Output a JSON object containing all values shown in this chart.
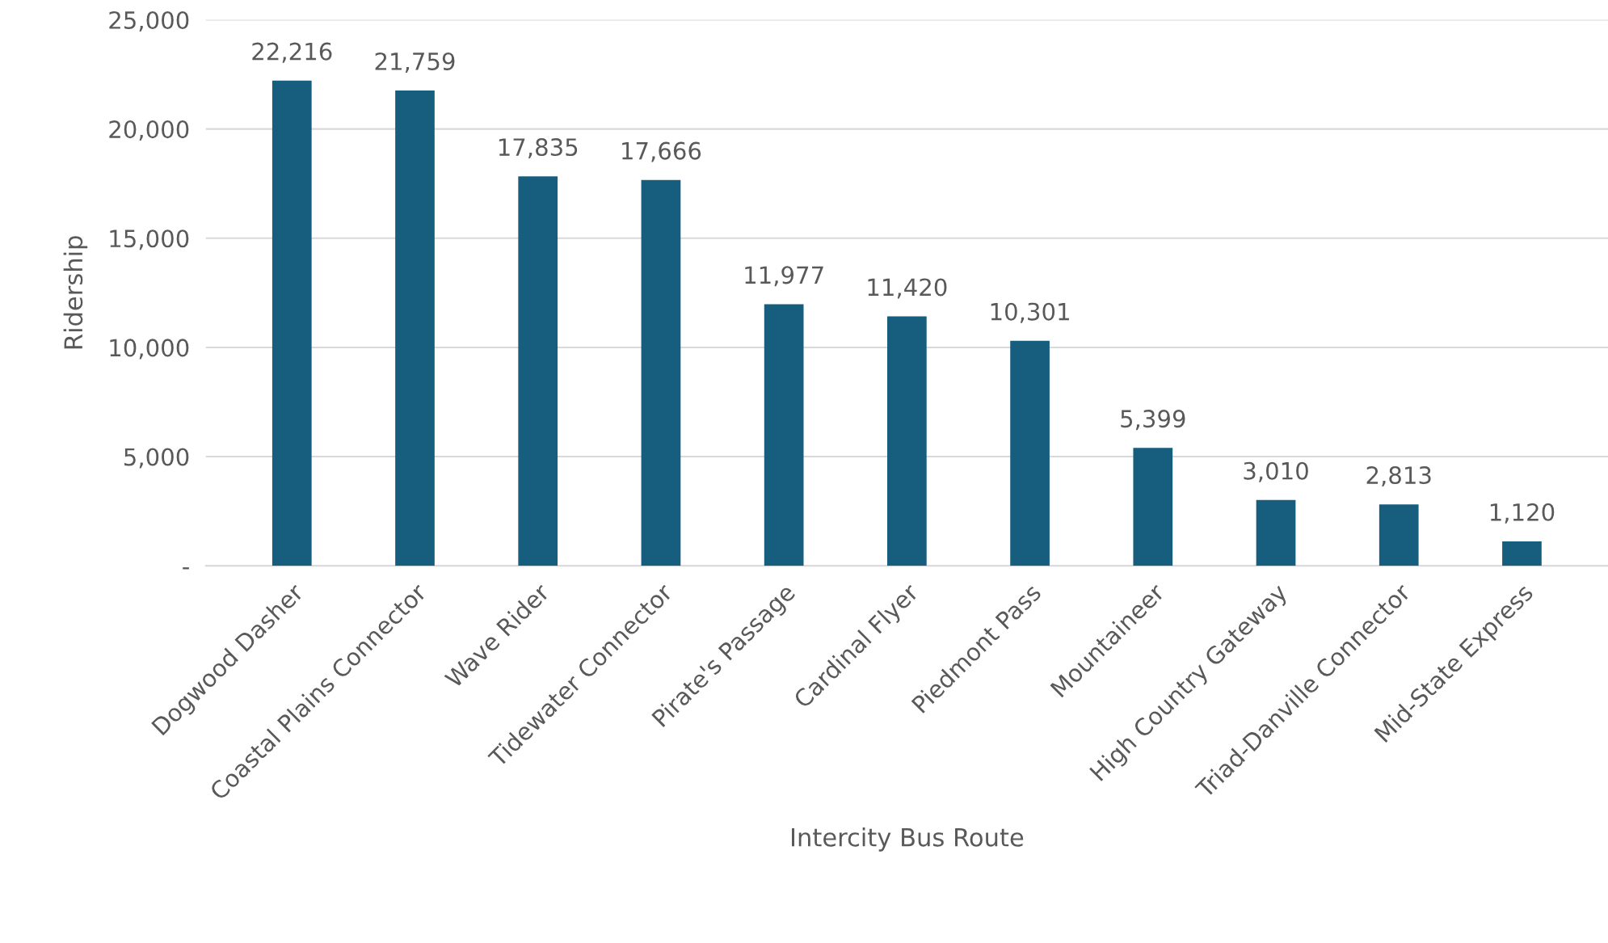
{
  "chart_data": {
    "type": "bar",
    "xlabel": "Intercity Bus Route",
    "ylabel": "Ridership",
    "categories": [
      "Dogwood Dasher",
      "Coastal Plains Connector",
      "Wave Rider",
      "Tidewater Connector",
      "Pirate's Passage",
      "Cardinal Flyer",
      "Piedmont Pass",
      "Mountaineer",
      "High Country Gateway",
      "Triad-Danville Connector",
      "Mid-State Express"
    ],
    "values": [
      22216,
      21759,
      17835,
      17666,
      11977,
      11420,
      10301,
      5399,
      3010,
      2813,
      1120
    ],
    "value_labels": [
      "22,216",
      "21,759",
      "17,835",
      "17,666",
      "11,977",
      "11,420",
      "10,301",
      "5,399",
      "3,010",
      "2,813",
      "1,120"
    ],
    "color": "#175e7e",
    "ylim": [
      0,
      25000
    ],
    "yticks": [
      {
        "value": 0,
        "label": "-"
      },
      {
        "value": 5000,
        "label": "5,000"
      },
      {
        "value": 10000,
        "label": "10,000"
      },
      {
        "value": 15000,
        "label": "15,000"
      },
      {
        "value": 20000,
        "label": "20,000"
      },
      {
        "value": 25000,
        "label": "25,000"
      }
    ],
    "grid": "y"
  }
}
